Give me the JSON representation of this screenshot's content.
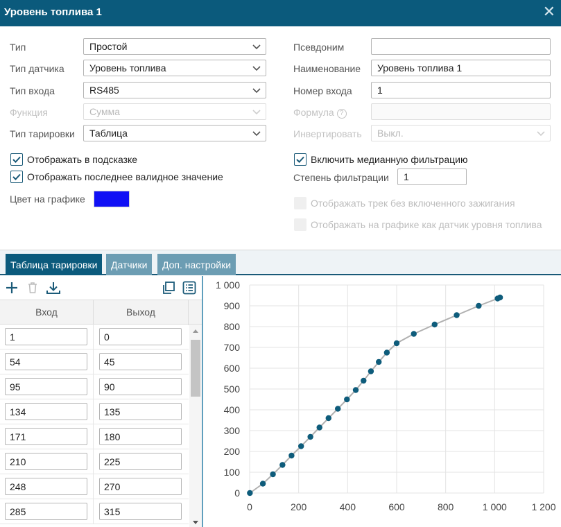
{
  "window": {
    "title": "Уровень топлива 1",
    "close_icon": "close-icon"
  },
  "form": {
    "type_label": "Тип",
    "type_value": "Простой",
    "sensor_type_label": "Тип датчика",
    "sensor_type_value": "Уровень топлива",
    "input_type_label": "Тип входа",
    "input_type_value": "RS485",
    "function_label": "Функция",
    "function_value": "Сумма",
    "calibration_type_label": "Тип тарировки",
    "calibration_type_value": "Таблица",
    "alias_label": "Псевдоним",
    "alias_value": "",
    "name_label": "Наименование",
    "name_value": "Уровень топлива 1",
    "input_number_label": "Номер входа",
    "input_number_value": "1",
    "formula_label": "Формула",
    "formula_value": "",
    "formula_help": "?",
    "invert_label": "Инвертировать",
    "invert_value": "Выкл."
  },
  "checkboxes": {
    "show_in_tooltip": {
      "label": "Отображать в подсказке",
      "checked": true
    },
    "show_last_valid": {
      "label": "Отображать последнее валидное значение",
      "checked": true
    },
    "median_filter": {
      "label": "Включить медианную фильтрацию",
      "checked": true
    },
    "track_without_ignition": {
      "label": "Отображать трек без включенного зажигания",
      "checked": false
    },
    "show_as_fuel_sensor": {
      "label": "Отображать на графике как датчик уровня топлива",
      "checked": false
    }
  },
  "filter_degree": {
    "label": "Степень фильтрации",
    "value": "1"
  },
  "graph_color": {
    "label": "Цвет на графике",
    "color": "#1010f5"
  },
  "tabs": [
    {
      "label": "Таблица тарировки",
      "active": true
    },
    {
      "label": "Датчики",
      "active": false
    },
    {
      "label": "Доп. настройки",
      "active": false
    }
  ],
  "table": {
    "headers": {
      "input": "Вход",
      "output": "Выход"
    },
    "rows": [
      {
        "input": "1",
        "output": "0"
      },
      {
        "input": "54",
        "output": "45"
      },
      {
        "input": "95",
        "output": "90"
      },
      {
        "input": "134",
        "output": "135"
      },
      {
        "input": "171",
        "output": "180"
      },
      {
        "input": "210",
        "output": "225"
      },
      {
        "input": "248",
        "output": "270"
      },
      {
        "input": "285",
        "output": "315"
      }
    ]
  },
  "toolbar_icons": [
    "add-icon",
    "delete-icon",
    "download-icon",
    "copy-icon",
    "list-icon"
  ],
  "accent_color": "#0b5a7c",
  "chart_data": {
    "type": "line",
    "x": [
      1,
      54,
      95,
      134,
      171,
      210,
      248,
      285,
      322,
      360,
      397,
      433,
      465,
      495,
      527,
      560,
      600,
      670,
      755,
      845,
      935,
      1012,
      1022
    ],
    "y": [
      0,
      45,
      90,
      135,
      180,
      225,
      270,
      315,
      360,
      405,
      450,
      495,
      540,
      585,
      630,
      675,
      720,
      765,
      810,
      855,
      900,
      935,
      940
    ],
    "xlim": [
      0,
      1200
    ],
    "ylim": [
      0,
      1000
    ],
    "xticks": [
      "0",
      "200",
      "400",
      "600",
      "800",
      "1 000",
      "1 200"
    ],
    "yticks": [
      "0",
      "100",
      "200",
      "300",
      "400",
      "500",
      "600",
      "700",
      "800",
      "900",
      "1 000"
    ],
    "grid": true,
    "line_color": "#b0b0b0",
    "point_color": "#0e5c7b"
  }
}
